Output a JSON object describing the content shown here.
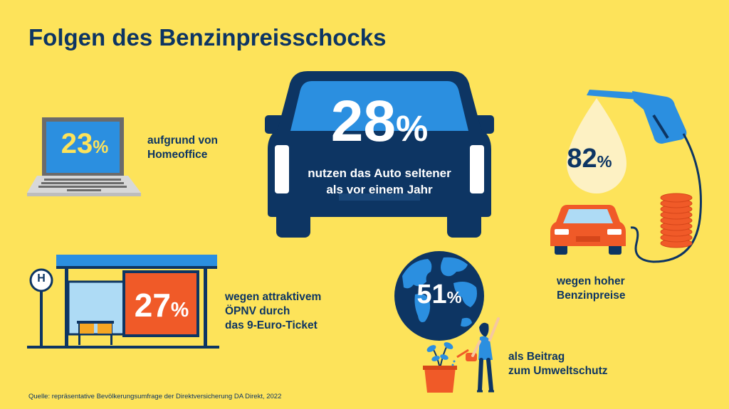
{
  "title": "Folgen des Benzinpreisschocks",
  "stats": {
    "auto": {
      "value": "28",
      "unit": "%",
      "caption_line1": "nutzen das Auto seltener",
      "caption_line2": "als vor einem Jahr"
    },
    "homeoffice": {
      "value": "23",
      "unit": "%",
      "caption_line1": "aufgrund von",
      "caption_line2": "Homeoffice"
    },
    "oepnv": {
      "value": "27",
      "unit": "%",
      "caption_line1": "wegen attraktivem",
      "caption_line2": "ÖPNV durch",
      "caption_line3": "das 9-Euro-Ticket"
    },
    "umwelt": {
      "value": "51",
      "unit": "%",
      "caption_line1": "als Beitrag",
      "caption_line2": "zum Umweltschutz"
    },
    "benzin": {
      "value": "82",
      "unit": "%",
      "caption_line1": "wegen hoher",
      "caption_line2": "Benzinpreise"
    }
  },
  "bus_stop_sign": "H",
  "source": "Quelle: repräsentative Bevölkerungsumfrage der Direktversicherung DA Direkt, 2022",
  "colors": {
    "background": "#fde35a",
    "navy": "#0d3563",
    "blue": "#2b8fe0",
    "light_blue": "#aedbf5",
    "orange": "#f05a28",
    "white": "#ffffff"
  }
}
